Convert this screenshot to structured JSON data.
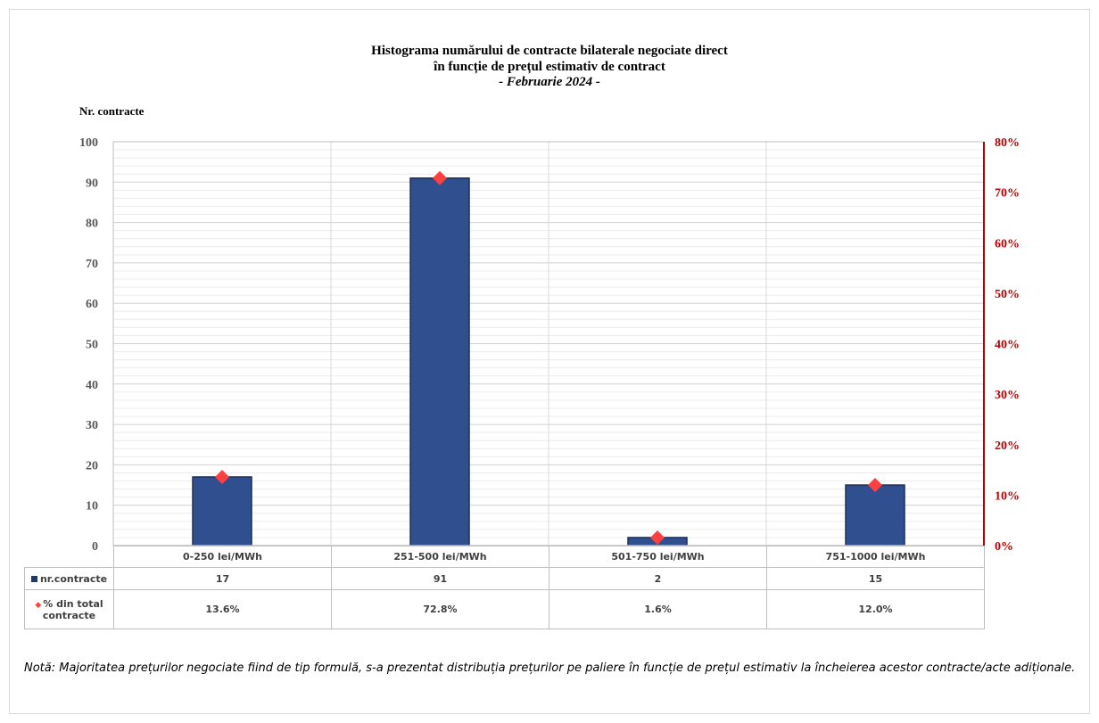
{
  "chart_data": {
    "type": "bar",
    "title": [
      "Histograma numărului de contracte bilaterale negociate direct",
      "în funcție de prețul estimativ de contract",
      "-  Februarie 2024  -"
    ],
    "ylabel": "Nr. contracte",
    "ylim": [
      0,
      100
    ],
    "y2lim": [
      0,
      0.8
    ],
    "yticks": [
      "0",
      "10",
      "20",
      "30",
      "40",
      "50",
      "60",
      "70",
      "80",
      "90",
      "100"
    ],
    "y2ticks": [
      "0%",
      "10%",
      "20%",
      "30%",
      "40%",
      "50%",
      "60%",
      "70%",
      "80%"
    ],
    "categories": [
      "0-250 lei/MWh",
      "251-500 lei/MWh",
      "501-750 lei/MWh",
      "751-1000 lei/MWh"
    ],
    "series": [
      {
        "name": "nr.contracte",
        "type": "bar",
        "axis": "left",
        "color": "#2f4f8f",
        "values": [
          17,
          91,
          2,
          15
        ],
        "labels": [
          "17",
          "91",
          "2",
          "15"
        ]
      },
      {
        "name": "% din total contracte",
        "type": "marker",
        "axis": "right",
        "color": "#ff4040",
        "values": [
          0.136,
          0.728,
          0.016,
          0.12
        ],
        "labels": [
          "13.6%",
          "72.8%",
          "1.6%",
          "12.0%"
        ]
      }
    ],
    "grid": true,
    "legend": "table-left"
  },
  "note": "Notă: Majoritatea prețurilor negociate fiind de tip formulă, s-a prezentat distribuția prețurilor pe paliere în funcție de prețul estimativ la încheierea acestor contracte/acte adiționale."
}
